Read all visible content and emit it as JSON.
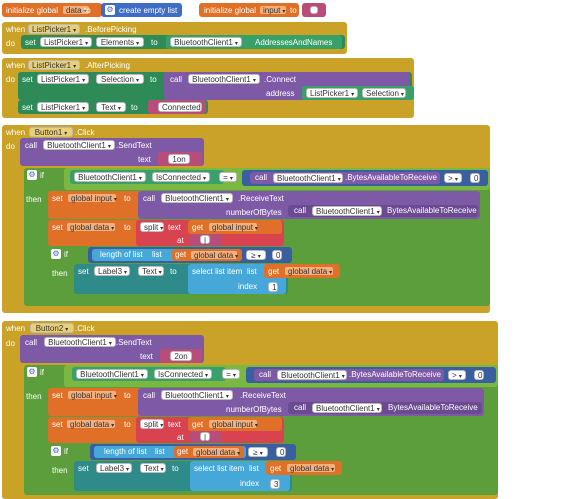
{
  "top": {
    "init1": {
      "label": "initialize global",
      "var": "data",
      "to": "to",
      "create": "create empty list"
    },
    "init2": {
      "label": "initialize global",
      "var": "input",
      "to": "to",
      "str": ""
    }
  },
  "ev1": {
    "when": "when",
    "comp": "ListPicker1",
    "event": ".BeforePicking",
    "do": "do",
    "set": "set",
    "target": "ListPicker1",
    "prop": "Elements",
    "to": "to",
    "bt": "BluetoothClient1",
    "getter": "AddressesAndNames"
  },
  "ev2": {
    "when": "when",
    "comp": "ListPicker1",
    "event": ".AfterPicking",
    "do": "do",
    "set": "set",
    "target": "ListPicker1",
    "prop": "Selection",
    "to": "to",
    "call": "call",
    "bt": "BluetoothClient1",
    "method": ".Connect",
    "address": "address",
    "lp": "ListPicker1",
    "sel": "Selection",
    "set2": "set",
    "target2": "ListPicker1",
    "prop2": "Text",
    "str": "Connected"
  },
  "ev3": {
    "when": "when",
    "comp": "Button1",
    "event": ".Click",
    "do": "do",
    "call": "call",
    "bt": "BluetoothClient1",
    "method": ".SendText",
    "text": "text",
    "str": "1on"
  },
  "ev4": {
    "when": "when",
    "comp": "Button2",
    "event": ".Click",
    "do": "do",
    "call": "call",
    "bt": "BluetoothClient1",
    "method": ".SendText",
    "text": "text",
    "str": "2on"
  },
  "ifblock": {
    "if": "if",
    "then": "then",
    "bt": "BluetoothClient1",
    "isconn": "IsConnected",
    "eq": "=",
    "call": "call",
    "bytes": ".BytesAvailableToReceive",
    "gt": ">",
    "zero": "0",
    "set": "set",
    "gi": "global input",
    "to": "to",
    "recv": ".ReceiveText",
    "numbytes": "numberOfBytes",
    "bytes2": "BytesAvailableToReceive",
    "gd": "global data",
    "split": "split",
    "text": "text",
    "get": "get",
    "at": "at",
    "pipe": "|",
    "len": "length of list",
    "list": "list",
    "ge": "≥",
    "label3": "Label3",
    "textprop": "Text",
    "select": "select list item",
    "index": "index"
  },
  "idx1": "1",
  "idx2": "3"
}
